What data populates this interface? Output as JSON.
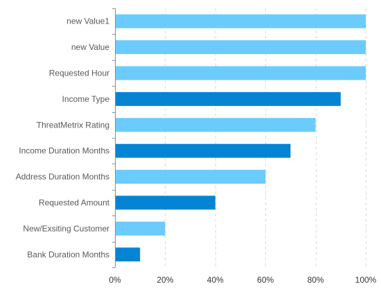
{
  "chart_data": {
    "type": "bar",
    "orientation": "horizontal",
    "title": "",
    "xlabel": "",
    "ylabel": "",
    "categories": [
      "new Value1",
      "new Value",
      "Requested Hour",
      "Income Type",
      "ThreatMetrix Rating",
      "Income Duration Months",
      "Address Duration Months",
      "Requested Amount",
      "New/Exsiting Customer",
      "Bank Duration Months"
    ],
    "values": [
      1.0,
      1.0,
      1.0,
      0.9,
      0.8,
      0.7,
      0.6,
      0.4,
      0.2,
      0.1
    ],
    "bar_colors": [
      "#6ccbfd",
      "#6ccbfd",
      "#6ccbfd",
      "#0684d4",
      "#6ccbfd",
      "#0684d4",
      "#6ccbfd",
      "#0684d4",
      "#6ccbfd",
      "#0684d4"
    ],
    "xlim": [
      0,
      1
    ],
    "x_ticks": [
      0,
      0.2,
      0.4,
      0.6,
      0.8,
      1.0
    ],
    "x_tick_labels": [
      "0%",
      "20%",
      "40%",
      "60%",
      "80%",
      "100%"
    ],
    "grid": "vertical dashed",
    "legend": "none"
  }
}
